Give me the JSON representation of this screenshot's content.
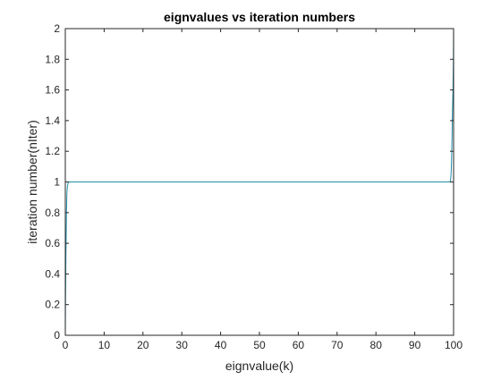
{
  "chart_data": {
    "type": "line",
    "title": "eignvalues  vs  iteration numbers",
    "xlabel": "eignvalue(k)",
    "ylabel": "iteration number(nIter)",
    "xlim": [
      0,
      100
    ],
    "ylim": [
      0,
      2
    ],
    "xticks": [
      0,
      10,
      20,
      30,
      40,
      50,
      60,
      70,
      80,
      90,
      100
    ],
    "yticks": [
      0,
      0.2,
      0.4,
      0.6,
      0.8,
      1,
      1.2,
      1.4,
      1.6,
      1.8,
      2
    ],
    "xtick_labels": [
      "0",
      "10",
      "20",
      "30",
      "40",
      "50",
      "60",
      "70",
      "80",
      "90",
      "100"
    ],
    "ytick_labels": [
      "0",
      "0.2",
      "0.4",
      "0.6",
      "0.8",
      "1",
      "1.2",
      "1.4",
      "1.6",
      "1.8",
      "2"
    ],
    "grid": false,
    "box": true,
    "series": [
      {
        "color": "#1f8fa8",
        "x": [
          0,
          0.05,
          0.1,
          0.15,
          0.2,
          0.3,
          0.4,
          0.5,
          0.6,
          0.7,
          0.8,
          0.9,
          1.0,
          99.0,
          99.1,
          99.2,
          99.3,
          99.4,
          99.5,
          99.6,
          99.7,
          99.8,
          99.85,
          99.9,
          99.95,
          100
        ],
        "y": [
          0,
          0.22,
          0.35,
          0.5,
          0.6,
          0.8,
          0.92,
          0.96,
          0.98,
          0.99,
          1.0,
          1.0,
          1.0,
          1.0,
          1.0,
          1.01,
          1.03,
          1.08,
          1.17,
          1.3,
          1.45,
          1.55,
          1.6,
          1.7,
          1.78,
          2.0
        ]
      }
    ]
  }
}
